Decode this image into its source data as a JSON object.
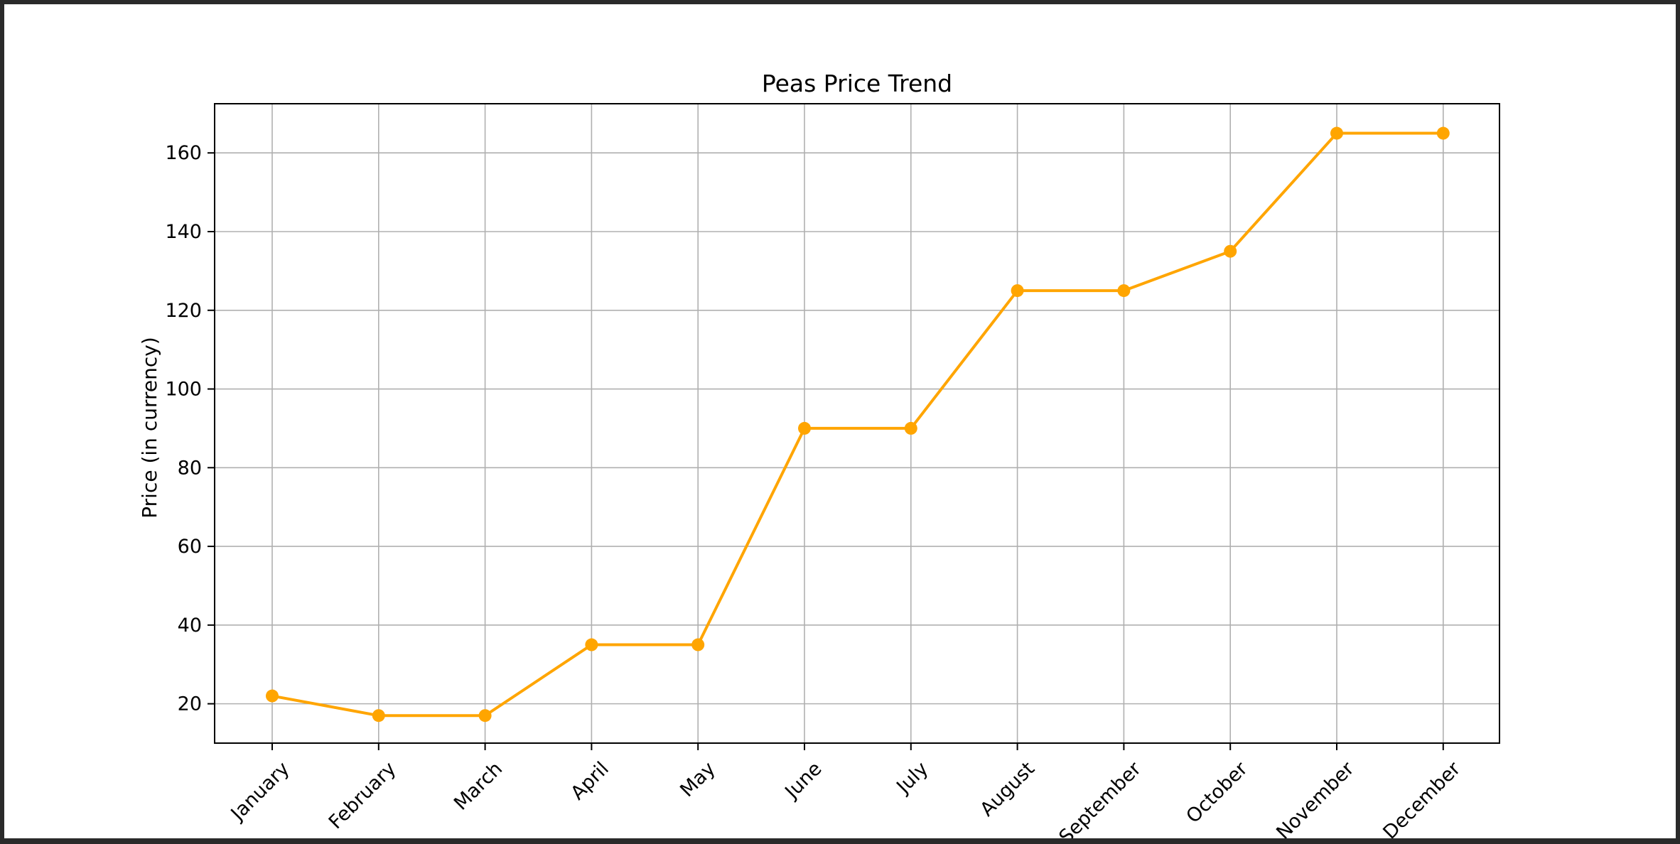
{
  "chart_data": {
    "type": "line",
    "title": "Peas Price Trend",
    "xlabel": "",
    "ylabel": "Price (in currency)",
    "categories": [
      "January",
      "February",
      "March",
      "April",
      "May",
      "June",
      "July",
      "August",
      "September",
      "October",
      "November",
      "December"
    ],
    "series": [
      {
        "values": [
          22,
          17,
          17,
          35,
          35,
          90,
          90,
          125,
          125,
          135,
          165,
          165
        ],
        "color": "#ffa500",
        "marker": "circle"
      }
    ],
    "ylim": [
      10,
      172.5
    ],
    "yticks": [
      20,
      40,
      60,
      80,
      100,
      120,
      140,
      160
    ],
    "grid": true,
    "legend": "none",
    "xtick_rotation": -45
  }
}
